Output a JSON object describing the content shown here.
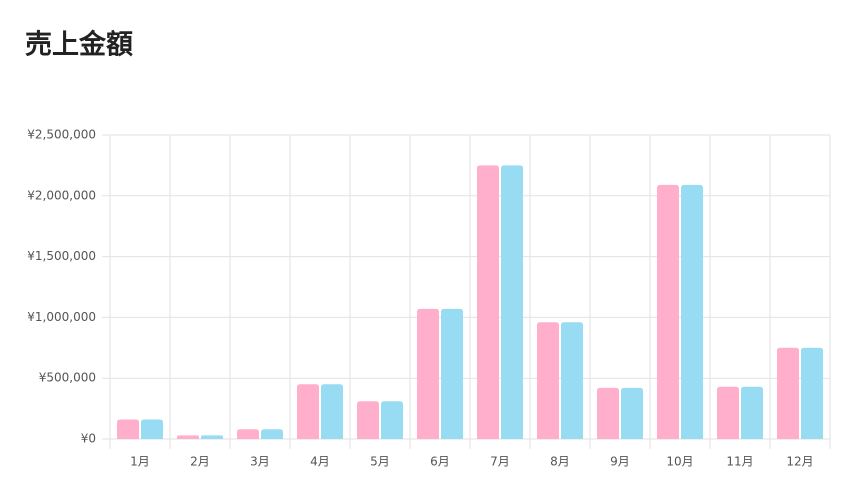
{
  "chart_data": {
    "type": "bar",
    "title": "売上金額",
    "categories": [
      "1月",
      "2月",
      "3月",
      "4月",
      "5月",
      "6月",
      "7月",
      "8月",
      "9月",
      "10月",
      "11月",
      "12月"
    ],
    "series": [
      {
        "color": "#ffafcb",
        "values": [
          160000,
          30000,
          80000,
          450000,
          310000,
          1070000,
          2250000,
          960000,
          420000,
          2090000,
          430000,
          750000
        ]
      },
      {
        "color": "#97dcf2",
        "values": [
          160000,
          30000,
          80000,
          450000,
          310000,
          1070000,
          2250000,
          960000,
          420000,
          2090000,
          430000,
          750000
        ]
      }
    ],
    "ylim": [
      0,
      2500000
    ],
    "yticks": [
      {
        "value": 0,
        "label": "¥0"
      },
      {
        "value": 500000,
        "label": "¥500,000"
      },
      {
        "value": 1000000,
        "label": "¥1,000,000"
      },
      {
        "value": 1500000,
        "label": "¥1,500,000"
      },
      {
        "value": 2000000,
        "label": "¥2,000,000"
      },
      {
        "value": 2500000,
        "label": "¥2,500,000"
      }
    ],
    "grid": true
  }
}
